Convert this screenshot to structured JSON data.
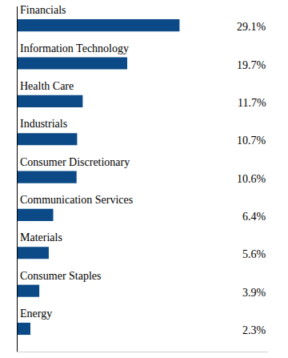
{
  "chart_data": {
    "type": "bar",
    "orientation": "horizontal",
    "categories": [
      "Financials",
      "Information Technology",
      "Health Care",
      "Industrials",
      "Consumer Discretionary",
      "Communication Services",
      "Materials",
      "Consumer Staples",
      "Energy"
    ],
    "values": [
      29.1,
      19.7,
      11.7,
      10.7,
      10.6,
      6.4,
      5.6,
      3.9,
      2.3
    ],
    "value_labels": [
      "29.1%",
      "19.7%",
      "11.7%",
      "10.7%",
      "10.6%",
      "6.4%",
      "5.6%",
      "3.9%",
      "2.3%"
    ],
    "color": "#0b4a86",
    "xlim": [
      0,
      45
    ],
    "xticks": [],
    "grid": false,
    "data_labels": true,
    "tick_labels": false
  }
}
